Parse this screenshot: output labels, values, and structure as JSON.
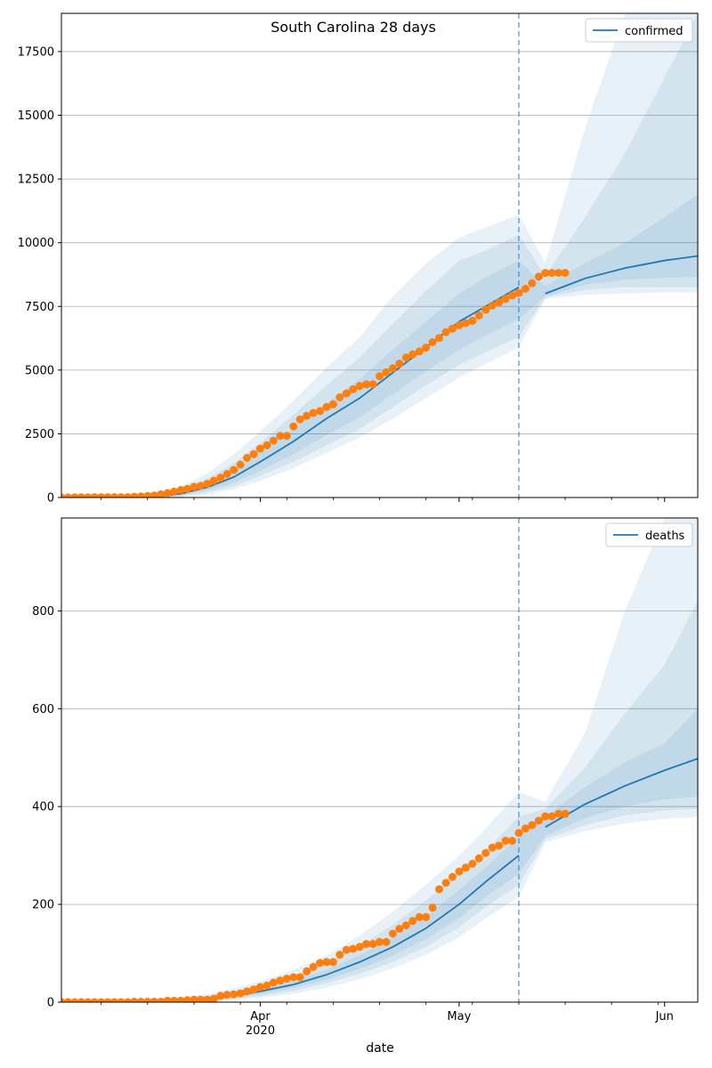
{
  "figure_title": "South Carolina 28 days",
  "xlabel": "date",
  "colors": {
    "model": "#1f77b4",
    "observed": "#ff7f0e",
    "band": "#1f77b4",
    "grid": "#b0b0b0"
  },
  "x_ticks": [
    {
      "date": "2020-04-01",
      "label": "Apr",
      "sublabel": "2020"
    },
    {
      "date": "2020-05-01",
      "label": "May",
      "sublabel": ""
    },
    {
      "date": "2020-06-01",
      "label": "Jun",
      "sublabel": ""
    }
  ],
  "chart_data": [
    {
      "type": "line",
      "legend": "confirmed",
      "legend_position": "top-right",
      "grid": "horizontal",
      "xlim": [
        "2020-03-02",
        "2020-06-06"
      ],
      "ylim": [
        0,
        19000
      ],
      "yticks": [
        0,
        2500,
        5000,
        7500,
        10000,
        12500,
        15000,
        17500
      ],
      "forecast_start": "2020-05-10",
      "model_dates": [
        "2020-03-02",
        "2020-03-10",
        "2020-03-16",
        "2020-03-20",
        "2020-03-24",
        "2020-03-28",
        "2020-04-01",
        "2020-04-06",
        "2020-04-11",
        "2020-04-16",
        "2020-04-21",
        "2020-04-26",
        "2020-05-01",
        "2020-05-05",
        "2020-05-10",
        "2020-05-14",
        "2020-05-20",
        "2020-05-26",
        "2020-06-01",
        "2020-06-06"
      ],
      "model_median": [
        0,
        0,
        20,
        150,
        400,
        800,
        1400,
        2200,
        3100,
        3900,
        4900,
        5900,
        6900,
        7500,
        8250,
        8000,
        8600,
        9000,
        9300,
        9480
      ],
      "bands": [
        {
          "lower": [
            0,
            0,
            0,
            80,
            280,
            580,
            1050,
            1700,
            2450,
            3150,
            4050,
            4950,
            5800,
            6350,
            7000,
            7900,
            8350,
            8550,
            8620,
            8660
          ],
          "upper": [
            0,
            0,
            40,
            230,
            560,
            1050,
            1750,
            2700,
            3700,
            4650,
            5800,
            6900,
            8000,
            8650,
            9300,
            8300,
            9200,
            10000,
            11000,
            11900
          ]
        },
        {
          "lower": [
            0,
            0,
            0,
            40,
            200,
            440,
            850,
            1400,
            2050,
            2700,
            3550,
            4400,
            5200,
            5700,
            6300,
            7850,
            8150,
            8250,
            8250,
            8250
          ],
          "upper": [
            0,
            0,
            60,
            330,
            750,
            1350,
            2150,
            3250,
            4400,
            5500,
            6800,
            8100,
            9300,
            9700,
            10300,
            8700,
            11000,
            13500,
            16500,
            19000
          ]
        },
        {
          "lower": [
            0,
            0,
            0,
            15,
            120,
            320,
            650,
            1150,
            1750,
            2350,
            3100,
            3900,
            4700,
            5250,
            5900,
            7800,
            7950,
            8000,
            8050,
            8050
          ],
          "upper": [
            0,
            0,
            90,
            420,
            950,
            1700,
            2600,
            3800,
            5100,
            6300,
            7900,
            9200,
            10200,
            10600,
            11100,
            9200,
            14500,
            19000,
            19000,
            19000
          ]
        }
      ],
      "observed_dates": [
        "2020-03-02",
        "2020-03-03",
        "2020-03-04",
        "2020-03-05",
        "2020-03-06",
        "2020-03-07",
        "2020-03-08",
        "2020-03-09",
        "2020-03-10",
        "2020-03-11",
        "2020-03-12",
        "2020-03-13",
        "2020-03-14",
        "2020-03-15",
        "2020-03-16",
        "2020-03-17",
        "2020-03-18",
        "2020-03-19",
        "2020-03-20",
        "2020-03-21",
        "2020-03-22",
        "2020-03-23",
        "2020-03-24",
        "2020-03-25",
        "2020-03-26",
        "2020-03-27",
        "2020-03-28",
        "2020-03-29",
        "2020-03-30",
        "2020-03-31",
        "2020-04-01",
        "2020-04-02",
        "2020-04-03",
        "2020-04-04",
        "2020-04-05",
        "2020-04-06",
        "2020-04-07",
        "2020-04-08",
        "2020-04-09",
        "2020-04-10",
        "2020-04-11",
        "2020-04-12",
        "2020-04-13",
        "2020-04-14",
        "2020-04-15",
        "2020-04-16",
        "2020-04-17",
        "2020-04-18",
        "2020-04-19",
        "2020-04-20",
        "2020-04-21",
        "2020-04-22",
        "2020-04-23",
        "2020-04-24",
        "2020-04-25",
        "2020-04-26",
        "2020-04-27",
        "2020-04-28",
        "2020-04-29",
        "2020-04-30",
        "2020-05-01",
        "2020-05-02",
        "2020-05-03",
        "2020-05-04",
        "2020-05-05",
        "2020-05-06",
        "2020-05-07",
        "2020-05-08",
        "2020-05-09",
        "2020-05-10",
        "2020-05-11",
        "2020-05-12",
        "2020-05-13",
        "2020-05-14",
        "2020-05-15",
        "2020-05-16",
        "2020-05-17"
      ],
      "observed": [
        0,
        2,
        7,
        10,
        12,
        13,
        13,
        13,
        13,
        13,
        13,
        33,
        47,
        60,
        81,
        125,
        173,
        231,
        298,
        342,
        424,
        456,
        539,
        660,
        774,
        925,
        1083,
        1293,
        1554,
        1700,
        1917,
        2049,
        2232,
        2417,
        2417,
        2792,
        3065,
        3207,
        3319,
        3391,
        3553,
        3656,
        3931,
        4086,
        4246,
        4377,
        4439,
        4446,
        4761,
        4917,
        5070,
        5253,
        5490,
        5613,
        5735,
        5881,
        6095,
        6258,
        6489,
        6626,
        6757,
        6841,
        6936,
        7142,
        7367,
        7531,
        7653,
        7792,
        7927,
        8030,
        8189,
        8407,
        8669,
        8816,
        8816,
        8816,
        8816
      ]
    },
    {
      "type": "line",
      "legend": "deaths",
      "legend_position": "top-right",
      "grid": "horizontal",
      "xlim": [
        "2020-03-02",
        "2020-06-06"
      ],
      "ylim": [
        0,
        990
      ],
      "yticks": [
        0,
        200,
        400,
        600,
        800
      ],
      "forecast_start": "2020-05-10",
      "model_dates": [
        "2020-03-02",
        "2020-03-10",
        "2020-03-16",
        "2020-03-20",
        "2020-03-24",
        "2020-03-28",
        "2020-04-01",
        "2020-04-06",
        "2020-04-11",
        "2020-04-16",
        "2020-04-21",
        "2020-04-26",
        "2020-05-01",
        "2020-05-05",
        "2020-05-10",
        "2020-05-14",
        "2020-05-20",
        "2020-05-26",
        "2020-06-01",
        "2020-06-06"
      ],
      "model_median": [
        0,
        0,
        1,
        3,
        7,
        13,
        22,
        36,
        56,
        82,
        113,
        151,
        200,
        246,
        300,
        358,
        405,
        442,
        474,
        498
      ],
      "bands": [
        {
          "lower": [
            0,
            0,
            0,
            2,
            5,
            10,
            17,
            29,
            46,
            68,
            95,
            129,
            172,
            215,
            262,
            340,
            376,
            400,
            415,
            420
          ],
          "upper": [
            0,
            0,
            2,
            5,
            10,
            17,
            28,
            44,
            66,
            96,
            132,
            175,
            230,
            275,
            338,
            378,
            440,
            490,
            530,
            600
          ]
        },
        {
          "lower": [
            0,
            0,
            0,
            1,
            3,
            7,
            13,
            23,
            39,
            58,
            82,
            113,
            153,
            195,
            240,
            333,
            362,
            382,
            392,
            395
          ],
          "upper": [
            0,
            0,
            3,
            7,
            13,
            22,
            35,
            54,
            80,
            115,
            158,
            208,
            265,
            310,
            380,
            395,
            480,
            590,
            690,
            820
          ]
        },
        {
          "lower": [
            0,
            0,
            0,
            0,
            2,
            4,
            9,
            17,
            30,
            47,
            69,
            97,
            133,
            172,
            215,
            327,
            350,
            365,
            375,
            378
          ],
          "upper": [
            0,
            0,
            4,
            9,
            17,
            28,
            43,
            66,
            96,
            136,
            185,
            240,
            300,
            355,
            430,
            410,
            550,
            800,
            990,
            990
          ]
        }
      ],
      "observed_dates": [
        "2020-03-02",
        "2020-03-03",
        "2020-03-04",
        "2020-03-05",
        "2020-03-06",
        "2020-03-07",
        "2020-03-08",
        "2020-03-09",
        "2020-03-10",
        "2020-03-11",
        "2020-03-12",
        "2020-03-13",
        "2020-03-14",
        "2020-03-15",
        "2020-03-16",
        "2020-03-17",
        "2020-03-18",
        "2020-03-19",
        "2020-03-20",
        "2020-03-21",
        "2020-03-22",
        "2020-03-23",
        "2020-03-24",
        "2020-03-25",
        "2020-03-26",
        "2020-03-27",
        "2020-03-28",
        "2020-03-29",
        "2020-03-30",
        "2020-03-31",
        "2020-04-01",
        "2020-04-02",
        "2020-04-03",
        "2020-04-04",
        "2020-04-05",
        "2020-04-06",
        "2020-04-07",
        "2020-04-08",
        "2020-04-09",
        "2020-04-10",
        "2020-04-11",
        "2020-04-12",
        "2020-04-13",
        "2020-04-14",
        "2020-04-15",
        "2020-04-16",
        "2020-04-17",
        "2020-04-18",
        "2020-04-19",
        "2020-04-20",
        "2020-04-21",
        "2020-04-22",
        "2020-04-23",
        "2020-04-24",
        "2020-04-25",
        "2020-04-26",
        "2020-04-27",
        "2020-04-28",
        "2020-04-29",
        "2020-04-30",
        "2020-05-01",
        "2020-05-02",
        "2020-05-03",
        "2020-05-04",
        "2020-05-05",
        "2020-05-06",
        "2020-05-07",
        "2020-05-08",
        "2020-05-09",
        "2020-05-10",
        "2020-05-11",
        "2020-05-12",
        "2020-05-13",
        "2020-05-14",
        "2020-05-15",
        "2020-05-16",
        "2020-05-17"
      ],
      "observed": [
        0,
        0,
        0,
        0,
        0,
        0,
        0,
        0,
        0,
        0,
        0,
        1,
        1,
        1,
        1,
        1,
        3,
        3,
        3,
        4,
        5,
        5,
        5,
        7,
        13,
        15,
        16,
        18,
        22,
        26,
        31,
        34,
        40,
        44,
        48,
        51,
        51,
        63,
        72,
        80,
        82,
        82,
        97,
        107,
        109,
        113,
        119,
        119,
        123,
        123,
        140,
        150,
        157,
        166,
        174,
        174,
        193,
        231,
        244,
        256,
        267,
        275,
        283,
        294,
        305,
        316,
        320,
        330,
        330,
        346,
        355,
        362,
        371,
        380,
        380,
        385,
        385
      ]
    }
  ]
}
